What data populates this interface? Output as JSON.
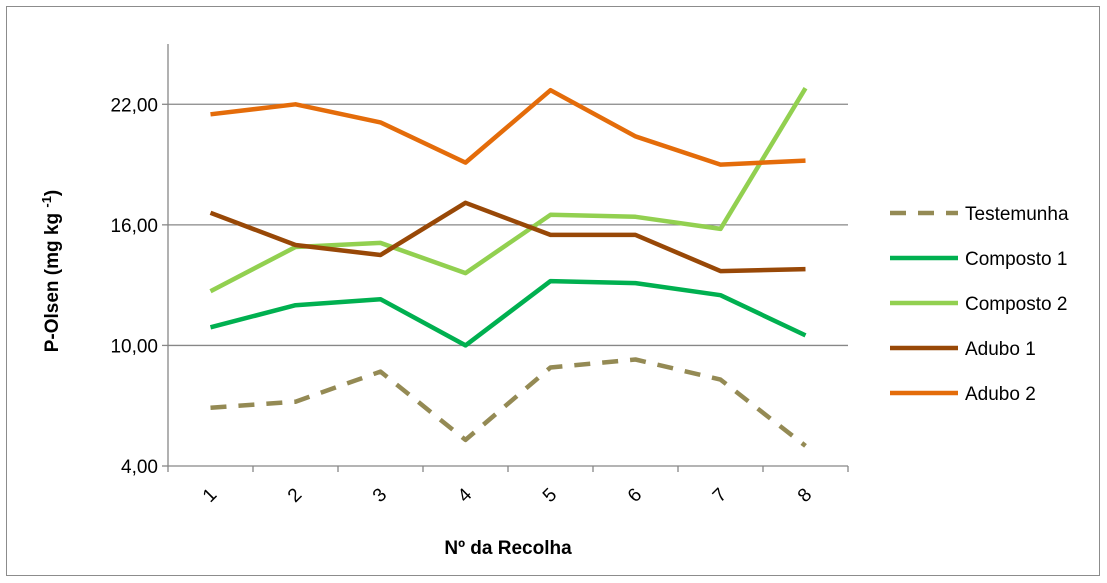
{
  "chart_data": {
    "type": "line",
    "title": "",
    "xlabel": "Nº da Recolha",
    "ylabel": {
      "main": "P-Olsen (mg kg ",
      "sup": "-1",
      "end": ")"
    },
    "categories": [
      "1",
      "2",
      "3",
      "4",
      "5",
      "6",
      "7",
      "8"
    ],
    "yticks": [
      "4,00",
      "10,00",
      "16,00",
      "22,00"
    ],
    "ytick_values": [
      4,
      10,
      16,
      22
    ],
    "ylim": [
      4,
      25
    ],
    "grid": "horizontal",
    "legend_position": "right",
    "series": [
      {
        "name": "Testemunha",
        "color": "#948a54",
        "dash": true,
        "values": [
          6.9,
          7.2,
          8.7,
          5.3,
          8.9,
          9.3,
          8.3,
          5.0
        ]
      },
      {
        "name": "Composto 1",
        "color": "#00b050",
        "dash": false,
        "values": [
          10.9,
          12.0,
          12.3,
          10.0,
          13.2,
          13.1,
          12.5,
          10.5
        ]
      },
      {
        "name": "Composto 2",
        "color": "#92d050",
        "dash": false,
        "values": [
          12.7,
          14.9,
          15.1,
          13.6,
          16.5,
          16.4,
          15.8,
          22.8
        ]
      },
      {
        "name": "Adubo 1",
        "color": "#984807",
        "dash": false,
        "values": [
          16.6,
          15.0,
          14.5,
          17.1,
          15.5,
          15.5,
          13.7,
          13.8
        ]
      },
      {
        "name": "Adubo 2",
        "color": "#e46c0a",
        "dash": false,
        "values": [
          21.5,
          22.0,
          21.1,
          19.1,
          22.7,
          20.4,
          19.0,
          19.2
        ]
      }
    ]
  }
}
